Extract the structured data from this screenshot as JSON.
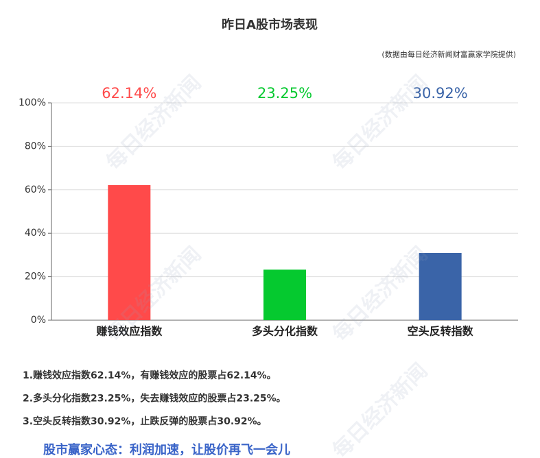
{
  "chart_data": {
    "type": "bar",
    "title": "昨日A股市场表现",
    "subtitle": "(数据由每日经济新闻财富赢家学院提供)",
    "watermark": "每日经济新闻",
    "categories": [
      "赚钱效应指数",
      "多头分化指数",
      "空头反转指数"
    ],
    "values": [
      62.14,
      23.25,
      30.92
    ],
    "value_labels": [
      "62.14%",
      "23.25%",
      "30.92%"
    ],
    "colors": [
      "#ff4a4a",
      "#05c92f",
      "#3a64a8"
    ],
    "ylim": [
      0,
      100
    ],
    "yticks": [
      {
        "value": 0,
        "label": "0%"
      },
      {
        "value": 20,
        "label": "20%"
      },
      {
        "value": 40,
        "label": "40%"
      },
      {
        "value": 60,
        "label": "60%"
      },
      {
        "value": 80,
        "label": "80%"
      },
      {
        "value": 100,
        "label": "100%"
      }
    ],
    "grid": true,
    "notes": [
      "1.赚钱效应指数62.14%，有赚钱效应的股票占62.14%。",
      "2.多头分化指数23.25%，失去赚钱效应的股票占23.25%。",
      "3.空头反转指数30.92%，止跌反弹的股票占30.92%。"
    ],
    "footer": "股市赢家心态：利润加速，让股价再飞一会儿"
  }
}
